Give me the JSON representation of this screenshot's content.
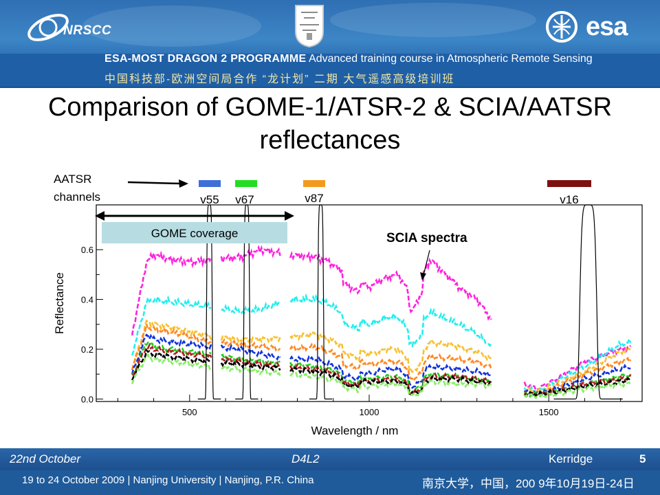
{
  "header": {
    "org_logo_text": "NRSCC",
    "esa_logo_text": "esa",
    "programme_bold": "ESA-MOST DRAGON 2 PROGRAMME",
    "programme_rest": "Advanced training course in Atmospheric Remote Sensing",
    "programme_cn": "中国科技部-欧洲空间局合作 “龙计划” 二期    大气遥感高级培训班"
  },
  "slide": {
    "title_line1": "Comparison of GOME-1/ATSR-2 & SCIA/AATSR",
    "title_line2": "reflectances"
  },
  "colors": {
    "header_blue": "#2f74b8",
    "gome_box": "#b7dde3",
    "aatsr_v55": "#3f6fd8",
    "aatsr_v67": "#22dd22",
    "aatsr_v87": "#f39a1e",
    "aatsr_v16": "#7f1010"
  },
  "chart_data": {
    "type": "line",
    "xlabel": "Wavelength / nm",
    "ylabel": "Reflectance",
    "xlim": [
      240,
      1760
    ],
    "ylim": [
      -0.01,
      0.78
    ],
    "xticks": [
      500,
      1000,
      1500
    ],
    "yticks": [
      0.0,
      0.2,
      0.4,
      0.6
    ],
    "ytick_labels": [
      "0.0",
      "0.2",
      "0.4",
      "0.6"
    ],
    "annotations": {
      "aatsr_label": "AATSR channels",
      "gome_coverage": "GOME coverage",
      "scia_spectra": "SCIA spectra"
    },
    "gome_coverage_range": [
      240,
      790
    ],
    "channels": [
      {
        "name": "v55",
        "center": 555,
        "width": 20,
        "color": "#3f6fd8"
      },
      {
        "name": "v67",
        "center": 659,
        "width": 20,
        "color": "#22dd22"
      },
      {
        "name": "v87",
        "center": 865,
        "width": 20,
        "color": "#f39a1e"
      },
      {
        "name": "v16",
        "center": 1610,
        "width": 60,
        "color": "#7f1010"
      }
    ],
    "spectra": [
      {
        "color": "#ff22dd",
        "values": {
          "340": 0.26,
          "380": 0.55,
          "400": 0.58,
          "450": 0.56,
          "500": 0.55,
          "560": 0.56,
          "640": 0.57,
          "700": 0.6,
          "780": 0.58,
          "850": 0.57,
          "890": 0.55,
          "920": 0.52,
          "1000": 0.45,
          "1050": 0.49,
          "1080": 0.5,
          "1120": 0.41,
          "1170": 0.56,
          "1250": 0.45,
          "1300": 0.4,
          "1350": 0.3,
          "1420": 0.07,
          "1470": 0.04,
          "1520": 0.08,
          "1600": 0.15,
          "1700": 0.2,
          "1730": 0.21
        }
      },
      {
        "color": "#22eeee",
        "values": {
          "340": 0.18,
          "380": 0.39,
          "400": 0.4,
          "450": 0.39,
          "500": 0.38,
          "560": 0.37,
          "640": 0.35,
          "700": 0.36,
          "780": 0.4,
          "850": 0.4,
          "890": 0.38,
          "920": 0.35,
          "1000": 0.3,
          "1050": 0.33,
          "1080": 0.33,
          "1120": 0.26,
          "1170": 0.35,
          "1250": 0.3,
          "1300": 0.26,
          "1350": 0.2,
          "1420": 0.05,
          "1470": 0.03,
          "1520": 0.07,
          "1600": 0.13,
          "1700": 0.22,
          "1730": 0.23
        }
      },
      {
        "color": "#f8c030",
        "values": {
          "340": 0.12,
          "380": 0.31,
          "400": 0.3,
          "450": 0.29,
          "500": 0.27,
          "560": 0.25,
          "640": 0.24,
          "700": 0.24,
          "780": 0.25,
          "850": 0.26,
          "890": 0.24,
          "920": 0.22,
          "1000": 0.18,
          "1050": 0.2,
          "1080": 0.2,
          "1120": 0.14,
          "1170": 0.23,
          "1250": 0.21,
          "1300": 0.19,
          "1350": 0.15,
          "1420": 0.04,
          "1470": 0.03,
          "1520": 0.06,
          "1600": 0.11,
          "1700": 0.19,
          "1730": 0.2
        }
      },
      {
        "color": "#ff8822",
        "values": {
          "340": 0.12,
          "380": 0.29,
          "400": 0.28,
          "450": 0.27,
          "500": 0.25,
          "560": 0.23,
          "640": 0.22,
          "700": 0.21,
          "780": 0.2,
          "850": 0.21,
          "890": 0.19,
          "920": 0.17,
          "1000": 0.14,
          "1050": 0.15,
          "1080": 0.15,
          "1120": 0.11,
          "1170": 0.17,
          "1250": 0.16,
          "1300": 0.15,
          "1350": 0.12,
          "1420": 0.03,
          "1470": 0.02,
          "1520": 0.05,
          "1600": 0.1,
          "1700": 0.15,
          "1730": 0.16
        }
      },
      {
        "color": "#1133dd",
        "values": {
          "340": 0.1,
          "380": 0.26,
          "400": 0.24,
          "450": 0.23,
          "500": 0.22,
          "560": 0.21,
          "640": 0.2,
          "700": 0.18,
          "780": 0.16,
          "850": 0.16,
          "890": 0.14,
          "920": 0.12,
          "1000": 0.1,
          "1050": 0.12,
          "1080": 0.12,
          "1120": 0.08,
          "1170": 0.13,
          "1250": 0.12,
          "1300": 0.11,
          "1350": 0.09,
          "1420": 0.03,
          "1470": 0.02,
          "1520": 0.04,
          "1600": 0.08,
          "1700": 0.12,
          "1730": 0.13
        }
      },
      {
        "color": "#22cc22",
        "values": {
          "340": 0.09,
          "380": 0.23,
          "400": 0.21,
          "450": 0.2,
          "500": 0.19,
          "560": 0.18,
          "640": 0.16,
          "700": 0.15,
          "780": 0.14,
          "850": 0.13,
          "890": 0.12,
          "920": 0.1,
          "1000": 0.08,
          "1050": 0.09,
          "1080": 0.09,
          "1120": 0.06,
          "1170": 0.1,
          "1250": 0.09,
          "1300": 0.08,
          "1350": 0.07,
          "1420": 0.02,
          "1470": 0.02,
          "1520": 0.03,
          "1600": 0.06,
          "1700": 0.09,
          "1730": 0.1
        }
      },
      {
        "color": "#aa2222",
        "values": {
          "340": 0.09,
          "380": 0.21,
          "400": 0.2,
          "450": 0.19,
          "500": 0.18,
          "560": 0.17,
          "640": 0.15,
          "700": 0.14,
          "780": 0.13,
          "850": 0.12,
          "890": 0.11,
          "920": 0.09,
          "1000": 0.07,
          "1050": 0.08,
          "1080": 0.08,
          "1120": 0.05,
          "1170": 0.09,
          "1250": 0.09,
          "1300": 0.08,
          "1350": 0.07,
          "1420": 0.02,
          "1470": 0.02,
          "1520": 0.03,
          "1600": 0.06,
          "1700": 0.08,
          "1730": 0.09
        }
      },
      {
        "color": "#000000",
        "values": {
          "340": 0.08,
          "380": 0.19,
          "400": 0.18,
          "450": 0.17,
          "500": 0.16,
          "560": 0.15,
          "640": 0.14,
          "700": 0.13,
          "780": 0.12,
          "850": 0.11,
          "890": 0.1,
          "920": 0.08,
          "1000": 0.07,
          "1050": 0.07,
          "1080": 0.07,
          "1120": 0.05,
          "1170": 0.08,
          "1250": 0.08,
          "1300": 0.07,
          "1350": 0.06,
          "1420": 0.02,
          "1470": 0.02,
          "1520": 0.03,
          "1600": 0.05,
          "1700": 0.07,
          "1730": 0.08
        }
      },
      {
        "color": "#88ee66",
        "values": {
          "340": 0.07,
          "380": 0.17,
          "400": 0.16,
          "450": 0.15,
          "500": 0.14,
          "560": 0.13,
          "640": 0.12,
          "700": 0.11,
          "780": 0.1,
          "850": 0.09,
          "890": 0.08,
          "920": 0.07,
          "1000": 0.05,
          "1050": 0.06,
          "1080": 0.06,
          "1120": 0.04,
          "1170": 0.07,
          "1250": 0.06,
          "1300": 0.06,
          "1350": 0.05,
          "1420": 0.02,
          "1470": 0.01,
          "1520": 0.02,
          "1600": 0.04,
          "1700": 0.06,
          "1730": 0.06
        }
      }
    ]
  },
  "footer": {
    "date": "22nd October",
    "session": "D4L2",
    "speaker": "Kerridge",
    "slide_number": "5",
    "venue": "19 to 24 October 2009 | Nanjing University | Nanjing, P.R. China",
    "venue_cn": "南京大学，中国，200 9年10月19日-24日"
  }
}
